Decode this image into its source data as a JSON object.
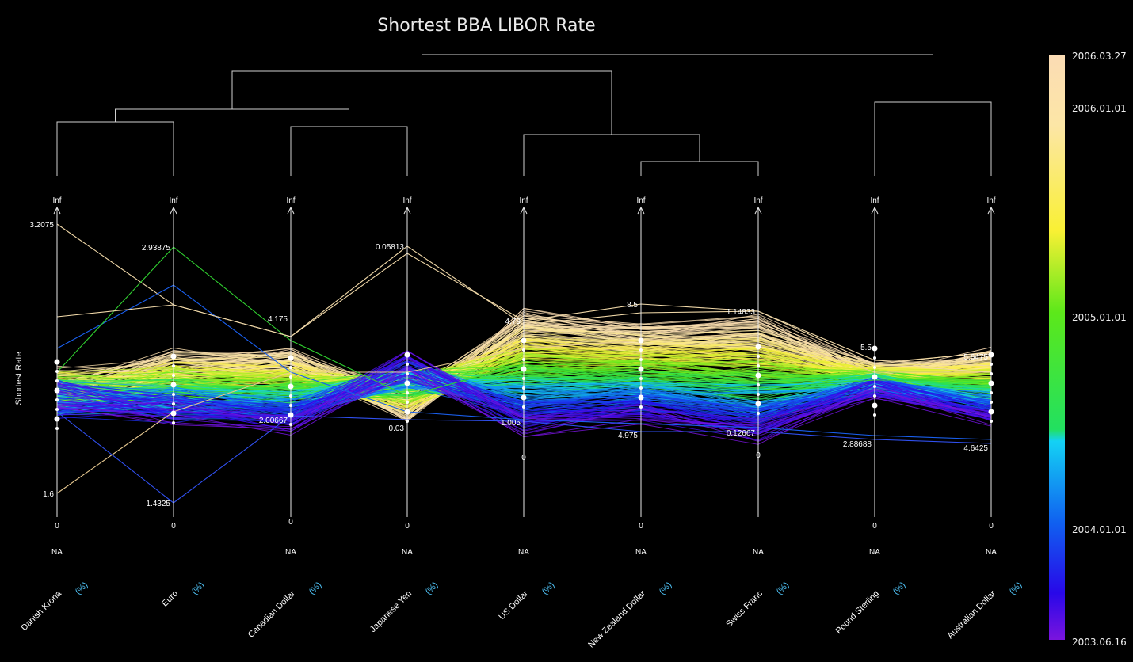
{
  "chart_data": {
    "type": "parallel-coordinates",
    "title": "Shortest BBA LIBOR Rate",
    "ylabel": "Shortest Rate",
    "axes": [
      {
        "name": "Danish Krona",
        "unit": "(%)",
        "max": "3.2075",
        "min": "1.6",
        "top": "Inf",
        "zero": "0",
        "na": "NA"
      },
      {
        "name": "Euro",
        "unit": "(%)",
        "max": "2.93875",
        "min": "1.4325",
        "top": "Inf",
        "zero": "0",
        "na": ""
      },
      {
        "name": "Canadian Dollar",
        "unit": "(%)",
        "max": "4.175",
        "min": "2.00667",
        "top": "Inf",
        "zero": "0",
        "na": "NA"
      },
      {
        "name": "Japanese Yen",
        "unit": "(%)",
        "max": "0.05813",
        "min": "0.03",
        "top": "Inf",
        "zero": "0",
        "na": "NA"
      },
      {
        "name": "US Dollar",
        "unit": "(%)",
        "max": "4.79",
        "min": "1.005",
        "top": "Inf",
        "zero": "0",
        "na": "NA"
      },
      {
        "name": "New Zealand Dollar",
        "unit": "(%)",
        "max": "8.5",
        "min": "4.975",
        "top": "Inf",
        "zero": "0",
        "na": "NA"
      },
      {
        "name": "Swiss Franc",
        "unit": "(%)",
        "max": "1.14833",
        "min": "0.12667",
        "top": "Inf",
        "zero": "0",
        "na": "NA"
      },
      {
        "name": "Pound Sterling",
        "unit": "(%)",
        "max": "5.5",
        "min": "2.88688",
        "top": "Inf",
        "zero": "0",
        "na": "NA"
      },
      {
        "name": "Australian Dollar",
        "unit": "(%)",
        "max": "5.6475",
        "min": "4.6425",
        "top": "Inf",
        "zero": "0",
        "na": "NA"
      }
    ],
    "dendrogram_merges": [
      [
        "Danish Krona",
        "Euro"
      ],
      [
        "Canadian Dollar",
        "Japanese Yen"
      ],
      [
        "New Zealand Dollar",
        "Swiss Franc"
      ],
      [
        "US Dollar",
        "New Zealand Dollar+Swiss Franc"
      ],
      [
        "Pound Sterling",
        "Australian Dollar"
      ],
      [
        "Danish Krona+Euro",
        "Canadian Dollar+Japanese Yen"
      ],
      [
        "European-group",
        "US Dollar-group"
      ],
      [
        "all-left",
        "Pound Sterling+Australian Dollar"
      ]
    ],
    "colorbar": {
      "ticks": [
        "2006.03.27",
        "2006.01.01",
        "2005.01.01",
        "2004.01.01",
        "2003.06.16"
      ],
      "colors": [
        "#fbdcb4",
        "#fce898",
        "#f6f21a",
        "#3ce61a",
        "#14d8f2",
        "#1464f0",
        "#2a0ae8",
        "#6a10e0"
      ]
    },
    "grid": false
  }
}
